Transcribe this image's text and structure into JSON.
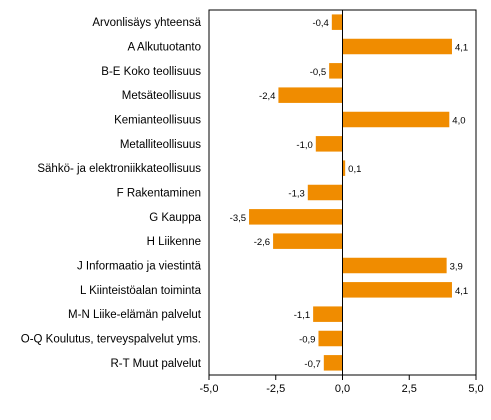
{
  "chart_data": {
    "type": "bar",
    "orientation": "horizontal",
    "categories": [
      "Arvonlisäys yhteensä",
      "A Alkutuotanto",
      "B-E Koko teollisuus",
      "Metsäteollisuus",
      "Kemianteollisuus",
      "Metalliteollisuus",
      "Sähkö- ja elektroniikkateollisuus",
      "F Rakentaminen",
      "G Kauppa",
      "H Liikenne",
      "J Informaatio ja viestintä",
      "L Kiinteistöalan toiminta",
      "M-N Liike-elämän palvelut",
      "O-Q Koulutus, terveyspalvelut yms.",
      "R-T Muut palvelut"
    ],
    "values": [
      -0.4,
      4.1,
      -0.5,
      -2.4,
      4.0,
      -1.0,
      0.1,
      -1.3,
      -3.5,
      -2.6,
      3.9,
      4.1,
      -1.1,
      -0.9,
      -0.7
    ],
    "value_labels": [
      "-0,4",
      "4,1",
      "-0,5",
      "-2,4",
      "4,0",
      "-1,0",
      "0,1",
      "-1,3",
      "-3,5",
      "-2,6",
      "3,9",
      "4,1",
      "-1,1",
      "-0,9",
      "-0,7"
    ],
    "xlim": [
      -5.0,
      5.0
    ],
    "xticks": [
      -5.0,
      -2.5,
      0.0,
      2.5,
      5.0
    ],
    "xtick_labels": [
      "-5,0",
      "-2,5",
      "0,0",
      "2,5",
      "5,0"
    ],
    "title": "",
    "xlabel": "",
    "ylabel": "",
    "grid": false,
    "legend": "none",
    "bar_color": "#f08c00"
  }
}
